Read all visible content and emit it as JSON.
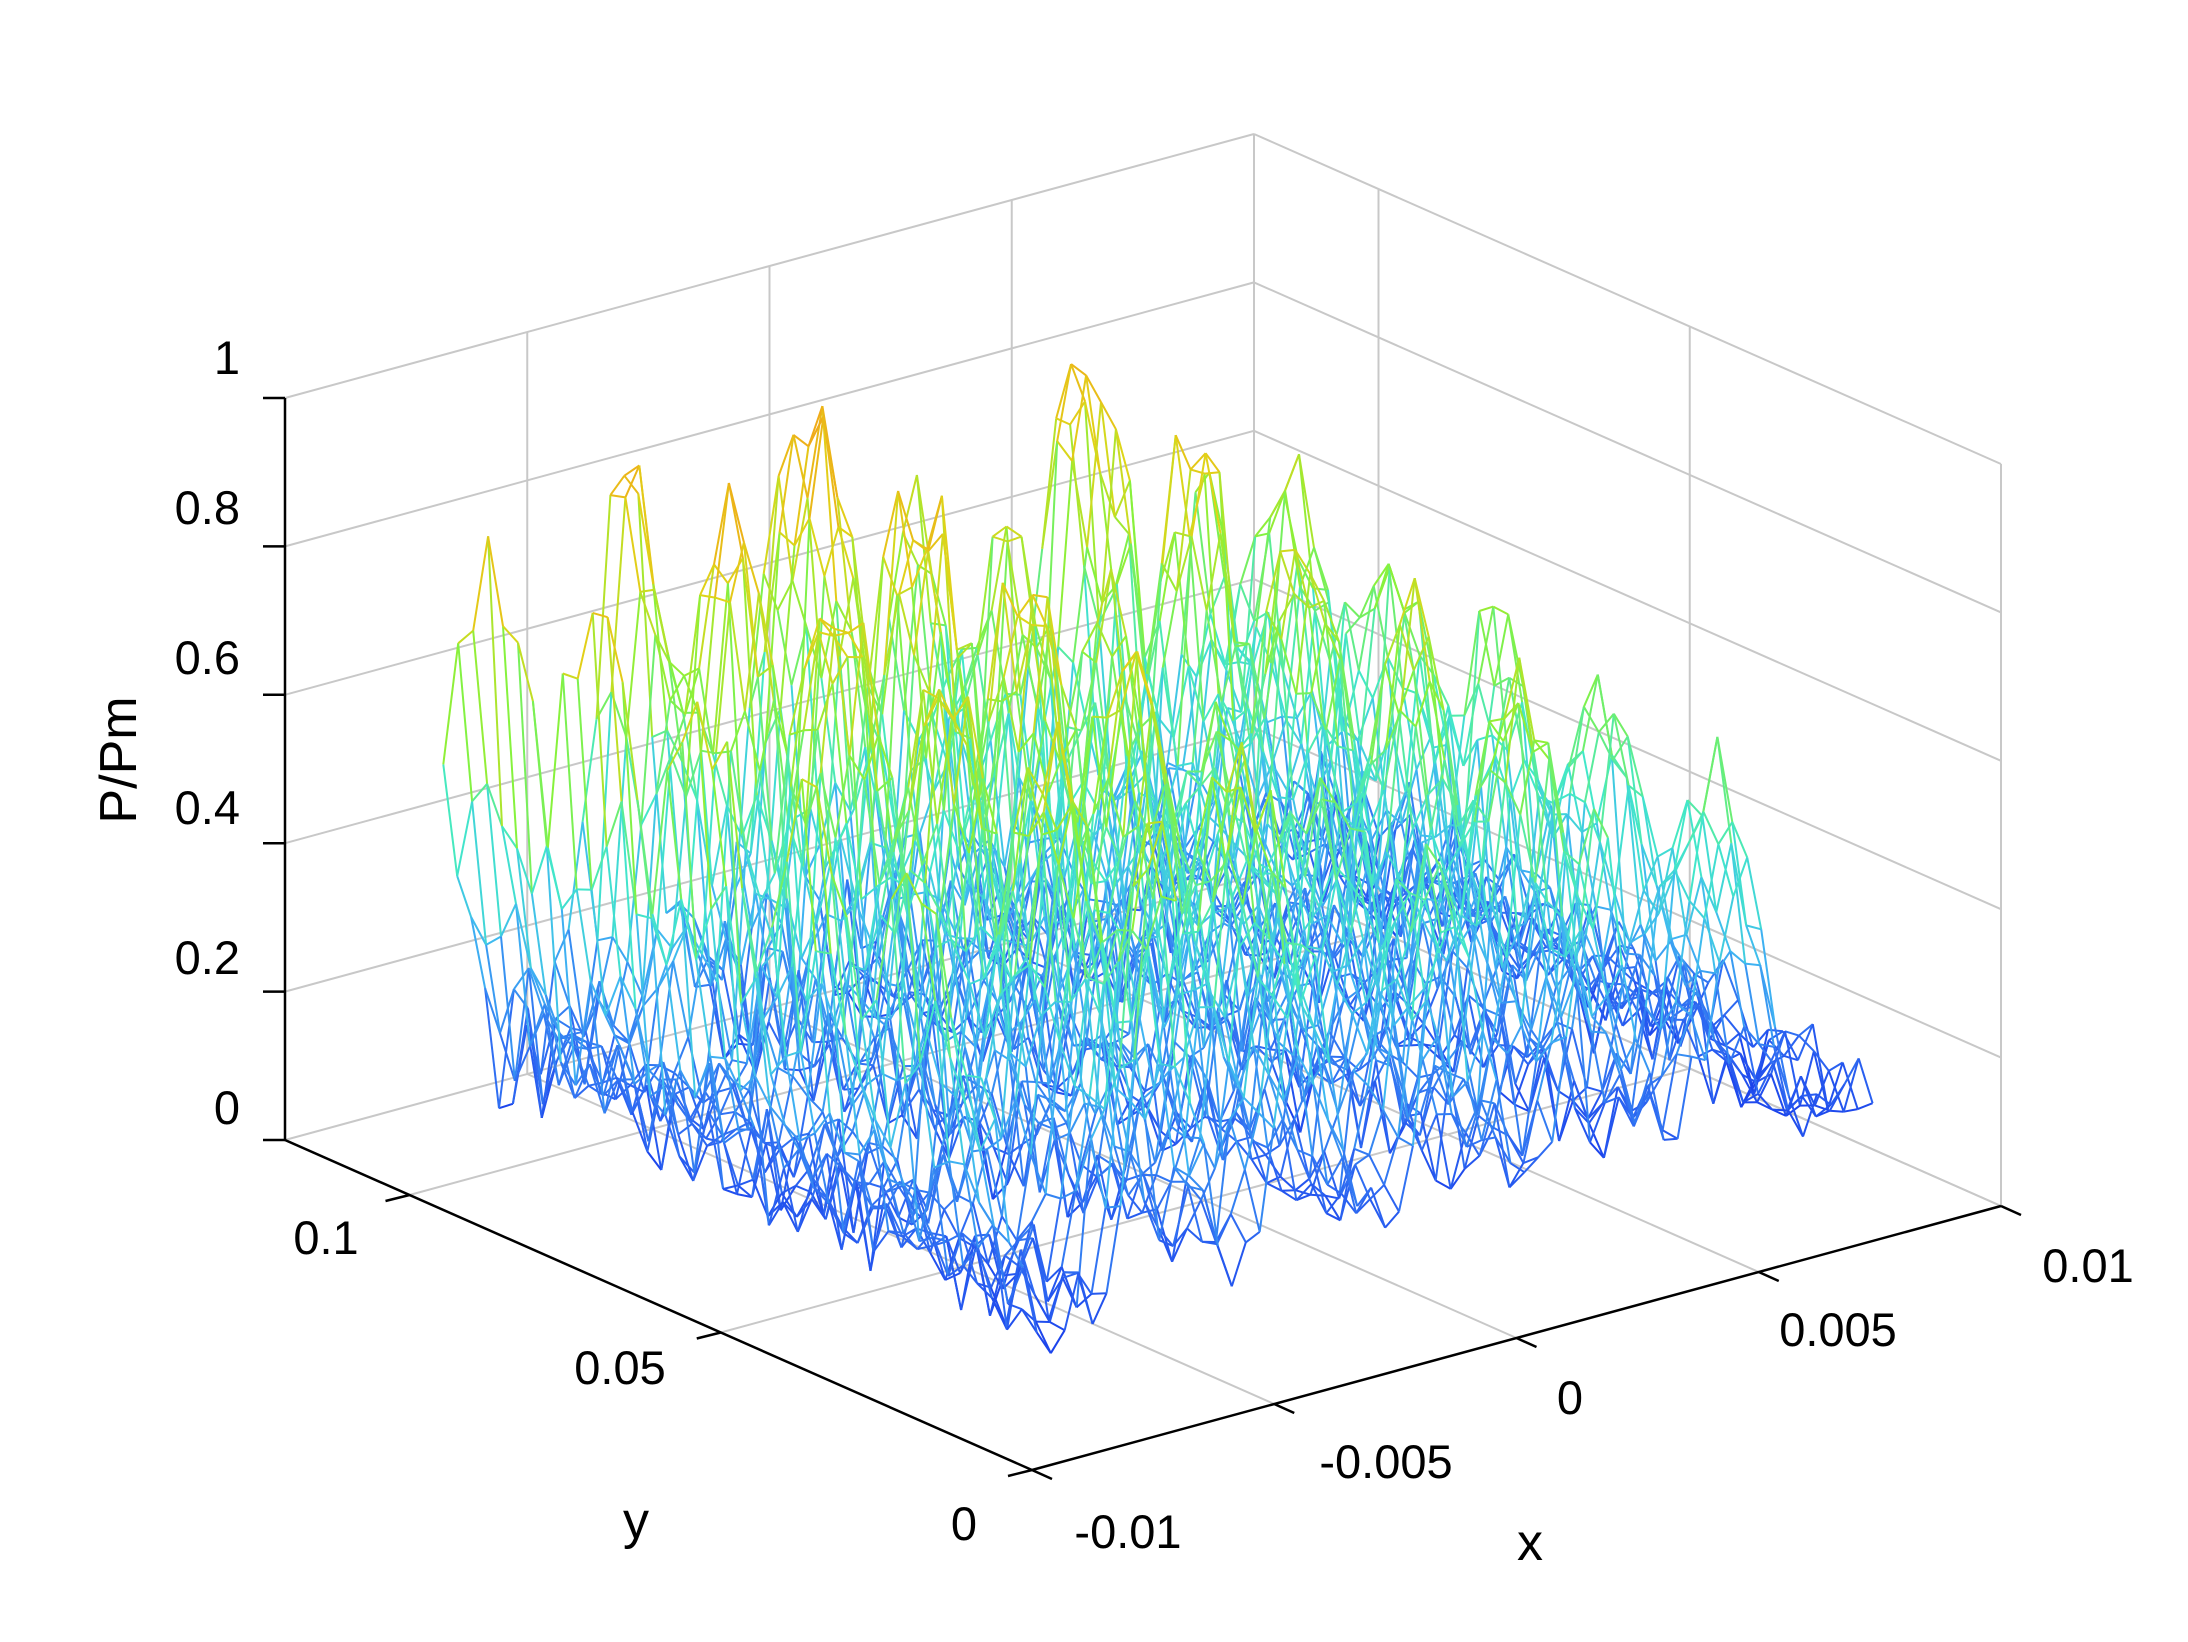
{
  "chart_data": {
    "type": "surface3d_mesh",
    "title": "",
    "zlabel": "P/Pm",
    "ylabel": "y",
    "xlabel": "x",
    "x_ticks": [
      "-0.01",
      "-0.005",
      "0",
      "0.005",
      "0.01"
    ],
    "y_ticks": [
      "0",
      "0.05",
      "0.1"
    ],
    "z_ticks": [
      "0",
      "0.2",
      "0.4",
      "0.6",
      "0.8",
      "1"
    ],
    "xlim": [
      -0.01,
      0.01
    ],
    "ylim": [
      0,
      0.12
    ],
    "zlim": [
      0,
      1
    ],
    "grid": true,
    "colormap": [
      "#0a1ee6",
      "#2f6cf2",
      "#3fb6f2",
      "#42e8c8",
      "#86f23c",
      "#e0d418",
      "#f2a418"
    ],
    "grid_color": "#c8c8c8",
    "ridges": [
      {
        "x": -0.0095,
        "peak": 0.93
      },
      {
        "x": -0.0055,
        "peak": 0.85
      },
      {
        "x": -0.0025,
        "peak": 0.88
      },
      {
        "x": 0.0005,
        "peak": 0.64
      },
      {
        "x": 0.0035,
        "peak": 0.78
      },
      {
        "x": 0.0065,
        "peak": 0.62
      }
    ]
  }
}
